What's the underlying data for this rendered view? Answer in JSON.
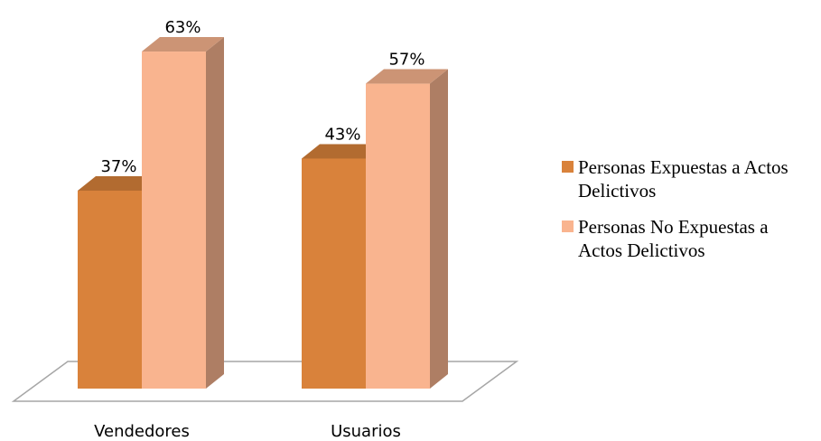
{
  "chart_data": {
    "type": "bar3d",
    "categories": [
      "Vendedores",
      "Usuarios"
    ],
    "series": [
      {
        "name": "Personas Expuestas a Actos Delictivos",
        "color": "#D9823B",
        "values": [
          37,
          43
        ],
        "value_labels": [
          "37%",
          "43%"
        ]
      },
      {
        "name": "Personas No Expuestas a Actos Delictivos",
        "color": "#F9B48F",
        "values": [
          63,
          57
        ],
        "value_labels": [
          "63%",
          "57%"
        ]
      }
    ],
    "legend": "right"
  }
}
